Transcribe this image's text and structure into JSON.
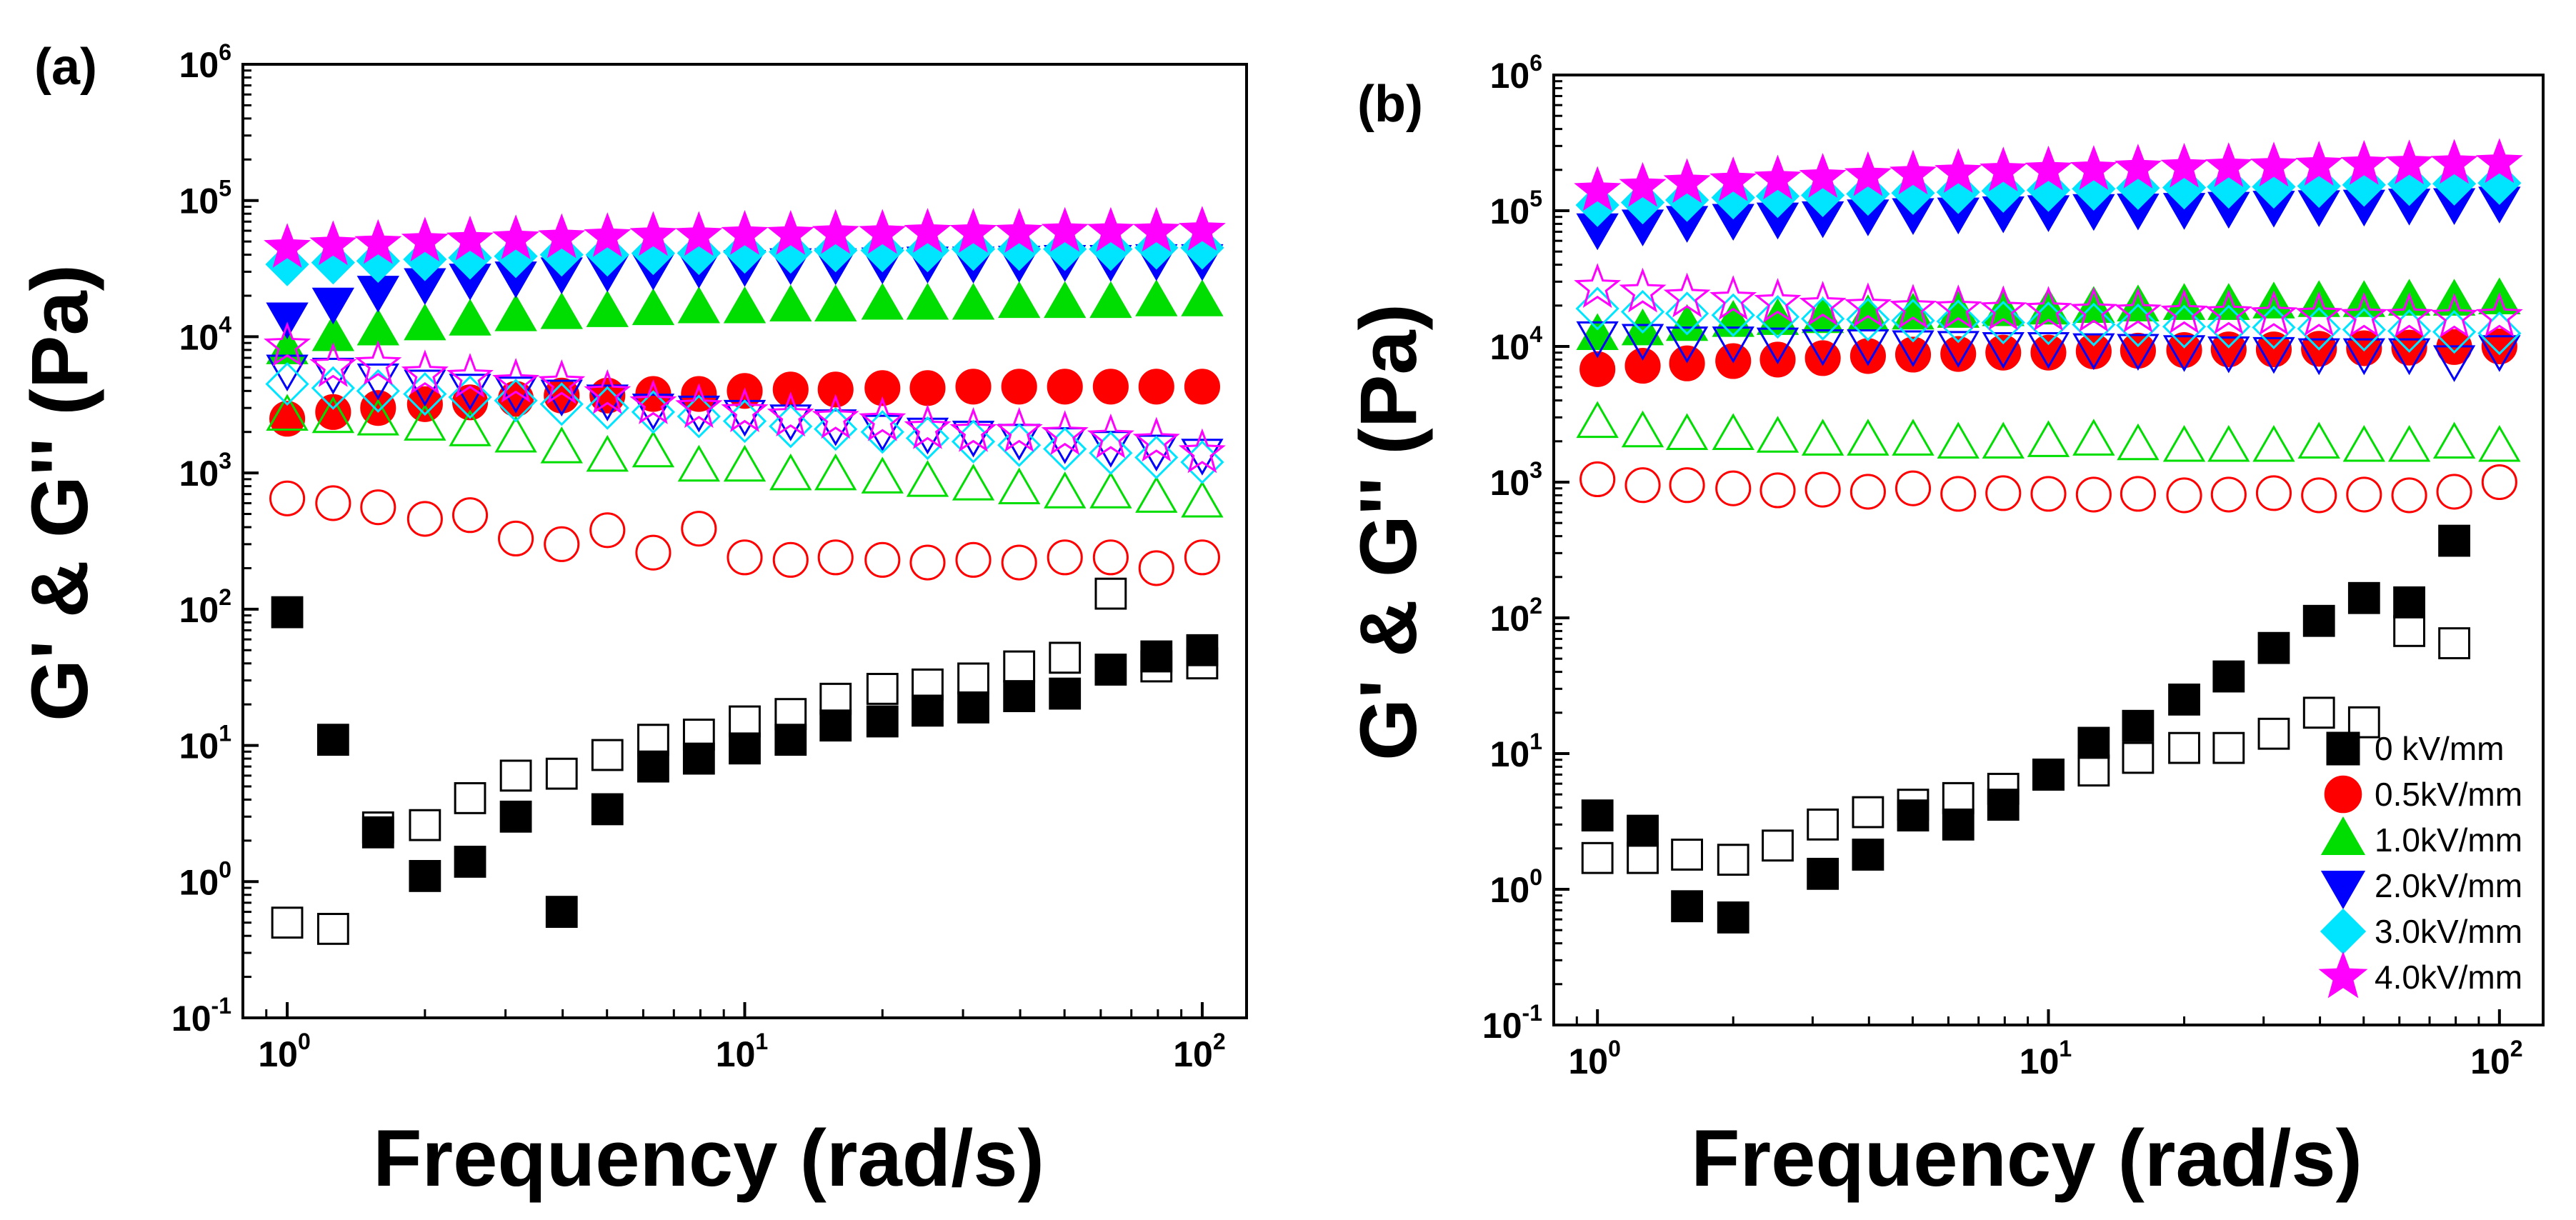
{
  "chart_data": [
    {
      "type": "scatter",
      "panel_label": "(a)",
      "xlabel": "Frequency (rad/s)",
      "ylabel": "G' & G''  (Pa)",
      "xscale": "log",
      "yscale": "log",
      "xlim": [
        0.8,
        125
      ],
      "ylim": [
        0.1,
        1000000
      ],
      "x_ticks": [
        {
          "base": "10",
          "exp": "0",
          "v": 1
        },
        {
          "base": "10",
          "exp": "1",
          "v": 10
        },
        {
          "base": "10",
          "exp": "2",
          "v": 100
        }
      ],
      "y_ticks": [
        {
          "base": "10",
          "exp": "-1",
          "v": 0.1
        },
        {
          "base": "10",
          "exp": "0",
          "v": 1
        },
        {
          "base": "10",
          "exp": "1",
          "v": 10
        },
        {
          "base": "10",
          "exp": "2",
          "v": 100
        },
        {
          "base": "10",
          "exp": "3",
          "v": 1000
        },
        {
          "base": "10",
          "exp": "4",
          "v": 10000
        },
        {
          "base": "10",
          "exp": "5",
          "v": 100000
        },
        {
          "base": "10",
          "exp": "6",
          "v": 1000000
        }
      ],
      "x": [
        1.0,
        1.26,
        1.58,
        2.0,
        2.51,
        3.16,
        3.98,
        5.01,
        6.31,
        7.94,
        10.0,
        12.6,
        15.8,
        20.0,
        25.1,
        31.6,
        39.8,
        50.1,
        63.1,
        79.4,
        100
      ],
      "series": [
        {
          "name": "0 kV/mm",
          "marker": "square",
          "color": "#000000",
          "fill": true,
          "values": [
            95,
            11,
            2.3,
            1.1,
            1.4,
            3,
            0.6,
            3.4,
            7,
            8,
            9.5,
            11,
            14,
            15,
            18,
            19,
            23,
            24,
            36,
            45,
            50
          ]
        },
        {
          "name": "0 kV/mm",
          "marker": "square",
          "color": "#000000",
          "fill": false,
          "values": [
            0.5,
            0.45,
            2.5,
            2.6,
            4.1,
            6,
            6.2,
            8.5,
            11,
            12,
            15,
            17,
            22,
            26,
            28,
            31,
            38,
            44,
            130,
            38,
            40
          ]
        },
        {
          "name": "0.5kV/mm",
          "marker": "circle",
          "color": "#ff0000",
          "fill": true,
          "values": [
            2500,
            2800,
            3000,
            3200,
            3300,
            3500,
            3700,
            3700,
            3800,
            3800,
            4000,
            4100,
            4100,
            4200,
            4200,
            4300,
            4300,
            4300,
            4300,
            4300,
            4300
          ]
        },
        {
          "name": "0.5kV/mm",
          "marker": "circle",
          "color": "#ff0000",
          "fill": false,
          "values": [
            650,
            600,
            560,
            460,
            490,
            330,
            300,
            380,
            260,
            390,
            240,
            230,
            240,
            230,
            220,
            230,
            220,
            240,
            240,
            200,
            240
          ]
        },
        {
          "name": "1.0kV/mm",
          "marker": "triangle-up",
          "color": "#00dd00",
          "fill": true,
          "values": [
            8000,
            10000,
            11000,
            12000,
            13000,
            14000,
            14500,
            15000,
            15500,
            16000,
            16000,
            16500,
            16500,
            17000,
            17000,
            17000,
            17500,
            17500,
            17500,
            18000,
            18000
          ]
        },
        {
          "name": "1.0kV/mm",
          "marker": "triangle-up",
          "color": "#00dd00",
          "fill": false,
          "values": [
            2600,
            2500,
            2400,
            2200,
            2000,
            1800,
            1500,
            1300,
            1400,
            1100,
            1100,
            950,
            950,
            900,
            850,
            800,
            750,
            700,
            700,
            650,
            600
          ]
        },
        {
          "name": "2.0kV/mm",
          "marker": "triangle-down",
          "color": "#0000ff",
          "fill": true,
          "values": [
            14000,
            18000,
            22000,
            25000,
            27000,
            28000,
            30000,
            31000,
            32000,
            33000,
            34000,
            35000,
            35000,
            35500,
            36000,
            36000,
            36500,
            37000,
            37000,
            37500,
            37500
          ]
        },
        {
          "name": "2.0kV/mm",
          "marker": "triangle-down",
          "color": "#0000ff",
          "fill": false,
          "values": [
            5800,
            5500,
            5000,
            4500,
            4200,
            4000,
            3800,
            3500,
            3000,
            2900,
            2700,
            2500,
            2300,
            2100,
            2000,
            1900,
            1800,
            1700,
            1600,
            1500,
            1400
          ]
        },
        {
          "name": "3.0kV/mm",
          "marker": "diamond",
          "color": "#00e5ff",
          "fill": true,
          "values": [
            34000,
            35000,
            36000,
            37000,
            38000,
            39000,
            40000,
            40000,
            41000,
            41000,
            42000,
            42000,
            43000,
            43000,
            43000,
            44000,
            44000,
            44000,
            44000,
            45000,
            45000
          ]
        },
        {
          "name": "3.0kV/mm",
          "marker": "diamond",
          "color": "#00e5ff",
          "fill": false,
          "values": [
            4500,
            4200,
            4000,
            3800,
            3600,
            3400,
            3200,
            3000,
            2800,
            2600,
            2400,
            2200,
            2100,
            2000,
            1800,
            1700,
            1600,
            1500,
            1400,
            1300,
            1200
          ]
        },
        {
          "name": "4.0kV/mm",
          "marker": "star",
          "color": "#ff00ff",
          "fill": true,
          "values": [
            45000,
            47000,
            48000,
            50000,
            51000,
            52000,
            53000,
            54000,
            55000,
            55000,
            56000,
            56000,
            57000,
            57000,
            58000,
            58000,
            58000,
            59000,
            59000,
            59000,
            60000
          ]
        },
        {
          "name": "4.0kV/mm",
          "marker": "star",
          "color": "#ff00ff",
          "fill": false,
          "values": [
            8500,
            6000,
            6200,
            5300,
            5000,
            4600,
            4500,
            3800,
            3200,
            3000,
            2800,
            2600,
            2500,
            2400,
            2100,
            2000,
            2000,
            1900,
            1800,
            1700,
            1400
          ]
        }
      ]
    },
    {
      "type": "scatter",
      "panel_label": "(b)",
      "xlabel": "Frequency (rad/s)",
      "ylabel": "G' & G''  (Pa)",
      "xscale": "log",
      "yscale": "log",
      "xlim": [
        0.8,
        125
      ],
      "ylim": [
        0.1,
        1000000
      ],
      "x_ticks": [
        {
          "base": "10",
          "exp": "0",
          "v": 1
        },
        {
          "base": "10",
          "exp": "1",
          "v": 10
        },
        {
          "base": "10",
          "exp": "2",
          "v": 100
        }
      ],
      "y_ticks": [
        {
          "base": "10",
          "exp": "-1",
          "v": 0.1
        },
        {
          "base": "10",
          "exp": "0",
          "v": 1
        },
        {
          "base": "10",
          "exp": "1",
          "v": 10
        },
        {
          "base": "10",
          "exp": "2",
          "v": 100
        },
        {
          "base": "10",
          "exp": "3",
          "v": 1000
        },
        {
          "base": "10",
          "exp": "4",
          "v": 10000
        },
        {
          "base": "10",
          "exp": "5",
          "v": 100000
        },
        {
          "base": "10",
          "exp": "6",
          "v": 1000000
        }
      ],
      "legend_position": "bottom-right",
      "x": [
        1.0,
        1.26,
        1.58,
        2.0,
        2.51,
        3.16,
        3.98,
        5.01,
        6.31,
        7.94,
        10.0,
        12.6,
        15.8,
        20.0,
        25.1,
        31.6,
        39.8,
        50.1,
        63.1,
        79.4,
        100
      ],
      "series": [
        {
          "name": "0 kV/mm",
          "marker": "square",
          "color": "#000000",
          "fill": true,
          "values": [
            3.5,
            2.7,
            0.75,
            0.62,
            null,
            1.3,
            1.8,
            3.5,
            3,
            4.2,
            7,
            12,
            16,
            25,
            37,
            60,
            95,
            140,
            130,
            370,
            null
          ]
        },
        {
          "name": "0 kV/mm",
          "marker": "square",
          "color": "#000000",
          "fill": false,
          "values": [
            1.7,
            1.7,
            1.8,
            1.65,
            2.1,
            3,
            3.7,
            4.2,
            4.7,
            5.5,
            7,
            7.5,
            9.3,
            11,
            11,
            14,
            20,
            17,
            80,
            65,
            null
          ]
        },
        {
          "name": "0.5kV/mm",
          "marker": "circle",
          "color": "#ff0000",
          "fill": true,
          "values": [
            6800,
            7200,
            7500,
            7800,
            8000,
            8200,
            8500,
            8700,
            8800,
            9000,
            9000,
            9200,
            9300,
            9400,
            9500,
            9500,
            9600,
            9700,
            9800,
            9900,
            10000
          ]
        },
        {
          "name": "0.5kV/mm",
          "marker": "circle",
          "color": "#ff0000",
          "fill": false,
          "values": [
            1050,
            950,
            950,
            900,
            870,
            880,
            850,
            900,
            820,
            830,
            820,
            810,
            820,
            800,
            810,
            830,
            800,
            810,
            800,
            850,
            1000
          ]
        },
        {
          "name": "1.0kV/mm",
          "marker": "triangle-up",
          "color": "#00dd00",
          "fill": true,
          "values": [
            12000,
            13000,
            14000,
            15000,
            15500,
            16000,
            16500,
            17000,
            17500,
            18000,
            18500,
            19000,
            19500,
            20000,
            20000,
            20500,
            21000,
            21000,
            21500,
            21500,
            22000
          ]
        },
        {
          "name": "1.0kV/mm",
          "marker": "triangle-up",
          "color": "#00dd00",
          "fill": false,
          "values": [
            2700,
            2300,
            2200,
            2200,
            2100,
            2000,
            2000,
            2000,
            1900,
            1900,
            1950,
            2000,
            1850,
            1800,
            1800,
            1800,
            1900,
            1800,
            1800,
            1900,
            1800
          ]
        },
        {
          "name": "2.0kV/mm",
          "marker": "triangle-down",
          "color": "#0000ff",
          "fill": true,
          "values": [
            75000,
            80000,
            85000,
            88000,
            90000,
            92000,
            95000,
            97000,
            98000,
            100000,
            102000,
            104000,
            105000,
            106000,
            108000,
            110000,
            111000,
            112000,
            114000,
            115000,
            118000
          ]
        },
        {
          "name": "2.0kV/mm",
          "marker": "triangle-down",
          "color": "#0000ff",
          "fill": false,
          "values": [
            12000,
            11500,
            11000,
            11000,
            10800,
            10500,
            10500,
            10300,
            10200,
            10000,
            10000,
            9800,
            9700,
            9500,
            9300,
            9200,
            9000,
            9000,
            9000,
            8000,
            9500
          ]
        },
        {
          "name": "3.0kV/mm",
          "marker": "diamond",
          "color": "#00e5ff",
          "fill": true,
          "values": [
            110000,
            115000,
            120000,
            125000,
            128000,
            130000,
            133000,
            135000,
            137000,
            140000,
            142000,
            145000,
            147000,
            148000,
            150000,
            150000,
            152000,
            155000,
            157000,
            158000,
            160000
          ]
        },
        {
          "name": "3.0kV/mm",
          "marker": "diamond",
          "color": "#00e5ff",
          "fill": false,
          "values": [
            19000,
            18000,
            17500,
            17000,
            16500,
            16000,
            15800,
            15500,
            15300,
            15000,
            14800,
            14500,
            14300,
            14000,
            14000,
            13800,
            13500,
            13300,
            13000,
            12800,
            12500
          ]
        },
        {
          "name": "4.0kV/mm",
          "marker": "star",
          "color": "#ff00ff",
          "fill": true,
          "values": [
            140000,
            150000,
            160000,
            165000,
            170000,
            175000,
            180000,
            185000,
            190000,
            195000,
            198000,
            200000,
            205000,
            208000,
            210000,
            212000,
            215000,
            218000,
            220000,
            222000,
            225000
          ]
        },
        {
          "name": "4.0kV/mm",
          "marker": "star",
          "color": "#ff00ff",
          "fill": false,
          "values": [
            27000,
            25000,
            23000,
            22000,
            21000,
            20000,
            19500,
            19000,
            18800,
            18500,
            18300,
            18000,
            17800,
            17500,
            17300,
            17000,
            16800,
            16500,
            16500,
            16300,
            16500
          ]
        }
      ],
      "legend": [
        {
          "label": "0 kV/mm",
          "marker": "square",
          "color": "#000000"
        },
        {
          "label": "0.5kV/mm",
          "marker": "circle",
          "color": "#ff0000"
        },
        {
          "label": "1.0kV/mm",
          "marker": "triangle-up",
          "color": "#00dd00"
        },
        {
          "label": "2.0kV/mm",
          "marker": "triangle-down",
          "color": "#0000ff"
        },
        {
          "label": "3.0kV/mm",
          "marker": "diamond",
          "color": "#00e5ff"
        },
        {
          "label": "4.0kV/mm",
          "marker": "star",
          "color": "#ff00ff"
        }
      ]
    }
  ]
}
